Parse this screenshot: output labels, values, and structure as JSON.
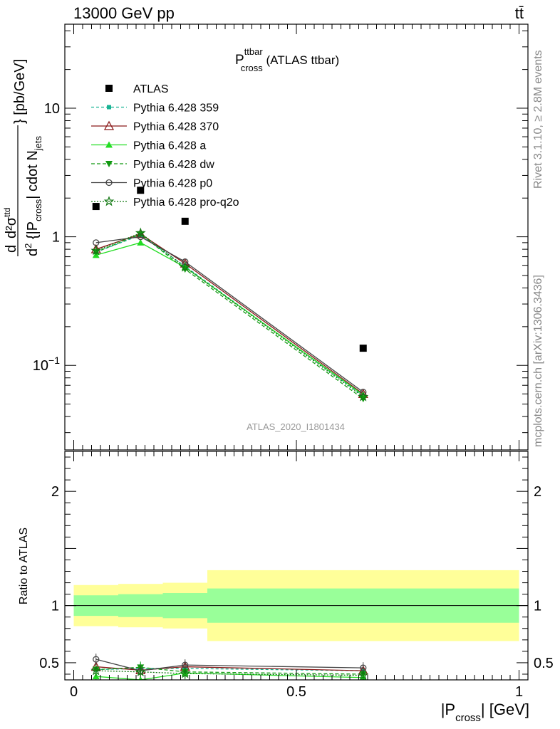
{
  "header": {
    "energy_label": "13000 GeV pp",
    "process_label": "tt̄"
  },
  "side_labels": {
    "rivet": "Rivet 3.1.10, ≥ 2.8M events",
    "mcplots": "mcplots.cern.ch [arXiv:1306.3436]"
  },
  "analysis_id": "ATLAS_2020_I1801434",
  "chart_data": [
    {
      "type": "scatter",
      "title": {
        "main": "P",
        "sup": "ttbar",
        "sub": "cross",
        "suffix": " (ATLAS ttbar)"
      },
      "ylabel": "d²σᵗᵗ / d²{|P_cross| cdot N_jets} [pb/GeV]",
      "ylabel_parts": {
        "d_top": "d",
        "sigma": "d²σ",
        "sigma_sup": "ttd",
        "d_bottom": "d",
        "d2_sup": "2",
        "abs_open": " {|P",
        "cross_sub": "cross",
        "abs_close": "| cdot N",
        "jets_sub": "jets",
        "close_unit": "} [pb/GeV]"
      },
      "y_scale": "log",
      "ylim": [
        0.022,
        45
      ],
      "y_ticks": [
        {
          "value": 0.1,
          "base": "10",
          "exp": "−1"
        },
        {
          "value": 1,
          "label": "1"
        },
        {
          "value": 10,
          "label": "10"
        }
      ],
      "legend_position": "top-left",
      "x": [
        0.05,
        0.15,
        0.25,
        0.65
      ],
      "data": {
        "name": "ATLAS",
        "color": "#000000",
        "x": [
          0.05,
          0.15,
          0.25,
          0.65
        ],
        "y": [
          1.72,
          2.3,
          1.32,
          0.136
        ]
      },
      "series": [
        {
          "name": "Pythia 6.428 359",
          "color": "#19b394",
          "dash": "4,3",
          "marker": "small-square",
          "values": [
            0.76,
            1.03,
            0.59,
            0.058
          ]
        },
        {
          "name": "Pythia 6.428 370",
          "color": "#8b1a1a",
          "dash": "",
          "marker": "open-triangle",
          "values": [
            0.8,
            1.05,
            0.62,
            0.06
          ]
        },
        {
          "name": "Pythia 6.428 a",
          "color": "#22dd22",
          "dash": "",
          "marker": "filled-triangle",
          "values": [
            0.72,
            0.9,
            0.58,
            0.059
          ]
        },
        {
          "name": "Pythia 6.428 dw",
          "color": "#119911",
          "dash": "5,3",
          "marker": "filled-triangle-down",
          "values": [
            0.76,
            1.05,
            0.56,
            0.055
          ]
        },
        {
          "name": "Pythia 6.428 p0",
          "color": "#444444",
          "dash": "",
          "marker": "open-circle",
          "values": [
            0.9,
            1.0,
            0.64,
            0.062
          ]
        },
        {
          "name": "Pythia 6.428 pro-q2o",
          "color": "#117711",
          "dash": "2,2",
          "marker": "open-star",
          "values": [
            0.78,
            1.07,
            0.58,
            0.057
          ]
        }
      ]
    },
    {
      "type": "scatter",
      "ylabel": "Ratio to ATLAS",
      "xlabel": "|P_cross| [GeV]",
      "xlabel_parts": {
        "open": "|P",
        "sub": "cross",
        "close": "| [GeV]"
      },
      "xlim": [
        -0.02,
        1.02
      ],
      "ylim": [
        0.35,
        2.35
      ],
      "x_ticks": [
        {
          "value": 0,
          "label": "0"
        },
        {
          "value": 0.5,
          "label": "0.5"
        },
        {
          "value": 1,
          "label": "1"
        }
      ],
      "y_ticks": [
        {
          "value": 0.5,
          "label": "0.5"
        },
        {
          "value": 1,
          "label": "1"
        },
        {
          "value": 2,
          "label": "2"
        }
      ],
      "bands": [
        {
          "x0": 0.0,
          "x1": 0.1,
          "yellow": [
            0.82,
            1.18
          ],
          "green": [
            0.91,
            1.09
          ]
        },
        {
          "x0": 0.1,
          "x1": 0.2,
          "yellow": [
            0.81,
            1.19
          ],
          "green": [
            0.9,
            1.1
          ]
        },
        {
          "x0": 0.2,
          "x1": 0.3,
          "yellow": [
            0.8,
            1.2
          ],
          "green": [
            0.89,
            1.11
          ]
        },
        {
          "x0": 0.3,
          "x1": 1.0,
          "yellow": [
            0.69,
            1.31
          ],
          "green": [
            0.85,
            1.15
          ]
        }
      ],
      "band_colors": {
        "yellow": "#ffff99",
        "green": "#99ff99"
      },
      "series": [
        {
          "name": "Pythia 6.428 359",
          "values": [
            0.44,
            0.45,
            0.45,
            0.43
          ]
        },
        {
          "name": "Pythia 6.428 370",
          "values": [
            0.465,
            0.435,
            0.465,
            0.43
          ]
        },
        {
          "name": "Pythia 6.428 a",
          "values": [
            0.38,
            0.35,
            0.41,
            0.37
          ]
        },
        {
          "name": "Pythia 6.428 dw",
          "values": [
            0.44,
            0.46,
            0.42,
            0.4
          ]
        },
        {
          "name": "Pythia 6.428 p0",
          "values": [
            0.53,
            0.43,
            0.48,
            0.455
          ]
        },
        {
          "name": "Pythia 6.428 pro-q2o",
          "values": [
            0.43,
            0.42,
            0.405,
            0.39
          ]
        }
      ]
    }
  ]
}
